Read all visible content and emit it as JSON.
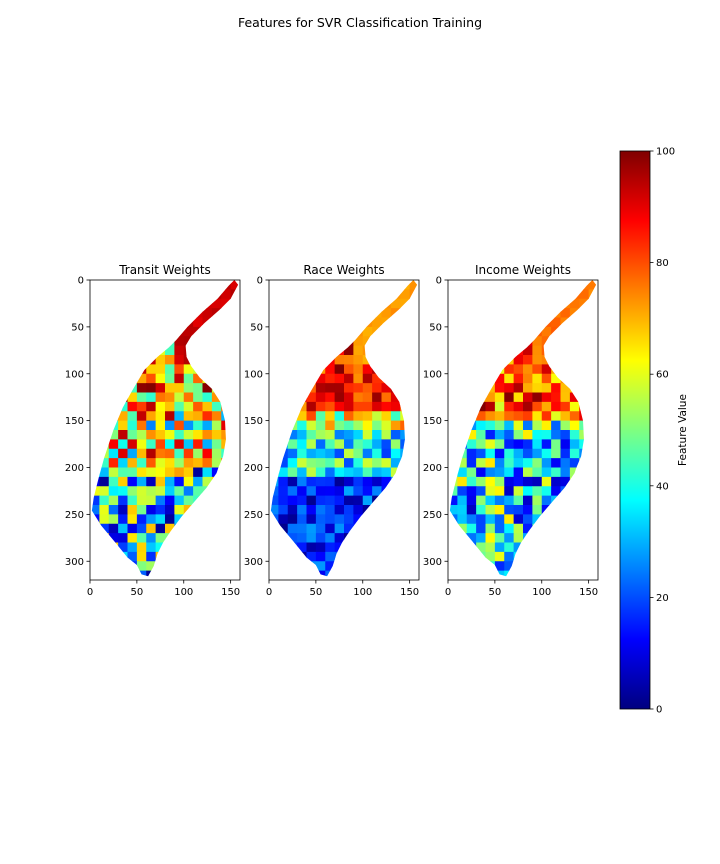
{
  "title": "Features for SVR Classification Training",
  "chart_data": [
    {
      "type": "heatmap",
      "title": "Transit Weights",
      "xlim": [
        0,
        160
      ],
      "ylim": [
        320,
        0
      ],
      "xticks": [
        0,
        50,
        100,
        150
      ],
      "yticks": [
        0,
        50,
        100,
        150,
        200,
        250,
        300
      ],
      "pattern": "mixed",
      "grid": false
    },
    {
      "type": "heatmap",
      "title": "Race Weights",
      "xlim": [
        0,
        160
      ],
      "ylim": [
        320,
        0
      ],
      "xticks": [
        0,
        50,
        100,
        150
      ],
      "yticks": [
        0,
        50,
        100,
        150,
        200,
        250,
        300
      ],
      "pattern": "high-north-low-south",
      "grid": false
    },
    {
      "type": "heatmap",
      "title": "Income Weights",
      "xlim": [
        0,
        160
      ],
      "ylim": [
        320,
        0
      ],
      "xticks": [
        0,
        50,
        100,
        150
      ],
      "yticks": [
        0,
        50,
        100,
        150,
        200,
        250,
        300
      ],
      "pattern": "high-north-mixed-south",
      "grid": false
    }
  ],
  "colorbar": {
    "label": "Feature Value",
    "colormap": "jet",
    "range": [
      0,
      100
    ],
    "ticks": [
      0,
      20,
      40,
      60,
      80,
      100
    ]
  }
}
